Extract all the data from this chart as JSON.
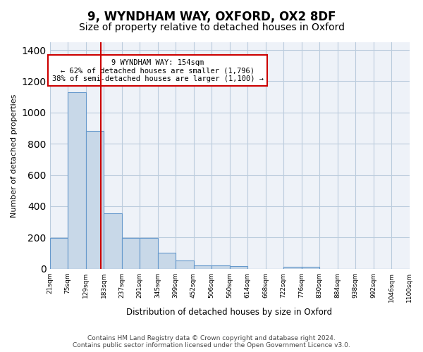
{
  "title": "9, WYNDHAM WAY, OXFORD, OX2 8DF",
  "subtitle": "Size of property relative to detached houses in Oxford",
  "xlabel": "Distribution of detached houses by size in Oxford",
  "ylabel": "Number of detached properties",
  "bar_color": "#c8d8e8",
  "bar_edge_color": "#6699cc",
  "background_color": "#eef2f8",
  "grid_color": "#bbccdd",
  "red_line_color": "#cc0000",
  "annotation_box_color": "#cc0000",
  "categories": [
    "21sqm",
    "75sqm",
    "129sqm",
    "183sqm",
    "237sqm",
    "291sqm",
    "345sqm",
    "399sqm",
    "452sqm",
    "506sqm",
    "560sqm",
    "614sqm",
    "668sqm",
    "722sqm",
    "776sqm",
    "830sqm",
    "884sqm",
    "938sqm",
    "992sqm",
    "1046sqm",
    "1100sqm"
  ],
  "bar_values": [
    197,
    1130,
    880,
    355,
    195,
    195,
    100,
    52,
    22,
    20,
    15,
    0,
    0,
    12,
    12,
    0,
    0,
    0,
    0,
    0
  ],
  "ylim": [
    0,
    1450
  ],
  "yticks": [
    0,
    200,
    400,
    600,
    800,
    1000,
    1200,
    1400
  ],
  "red_line_x": 2.35,
  "annotation_text": "9 WYNDHAM WAY: 154sqm\n← 62% of detached houses are smaller (1,796)\n38% of semi-detached houses are larger (1,100) →",
  "footer_text": "Contains HM Land Registry data © Crown copyright and database right 2024.\nContains public sector information licensed under the Open Government Licence v3.0.",
  "title_fontsize": 12,
  "subtitle_fontsize": 10,
  "annot_fontsize": 7.5,
  "footer_fontsize": 6.5
}
